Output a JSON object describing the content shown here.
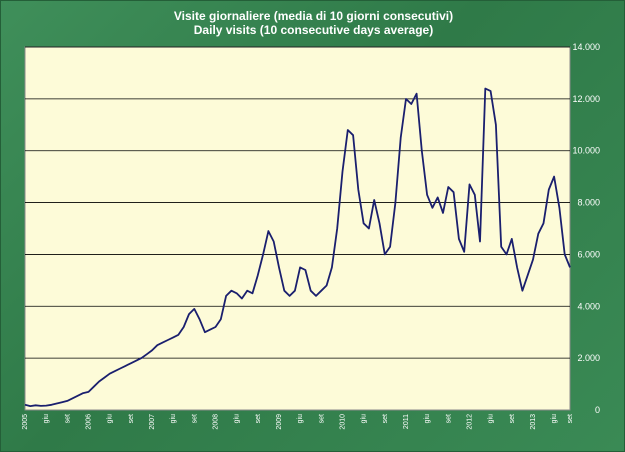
{
  "chart_data": {
    "type": "line",
    "title": "Visite giornaliere (media di 10 giorni consecutivi)",
    "subtitle": "Daily visits (10 consecutive days average)",
    "xlabel": "",
    "ylabel": "",
    "ylim": [
      0,
      14000
    ],
    "yticks": [
      {
        "value": 0,
        "label": "0"
      },
      {
        "value": 2000,
        "label": "2.000"
      },
      {
        "value": 4000,
        "label": "4.000"
      },
      {
        "value": 6000,
        "label": "6.000"
      },
      {
        "value": 8000,
        "label": "8.000"
      },
      {
        "value": 10000,
        "label": "10.000"
      },
      {
        "value": 12000,
        "label": "12.000"
      },
      {
        "value": 14000,
        "label": "14.000"
      }
    ],
    "grid": true,
    "line_color": "#1a1f6e",
    "plot_background": "#fdfbd8",
    "xlim": [
      0,
      103
    ],
    "xticks": [
      {
        "x": 0,
        "label": "2005"
      },
      {
        "x": 4,
        "label": "giu"
      },
      {
        "x": 8,
        "label": "set"
      },
      {
        "x": 12,
        "label": "2006"
      },
      {
        "x": 16,
        "label": "giu"
      },
      {
        "x": 20,
        "label": "set"
      },
      {
        "x": 24,
        "label": "2007"
      },
      {
        "x": 28,
        "label": "giu"
      },
      {
        "x": 32,
        "label": "set"
      },
      {
        "x": 36,
        "label": "2008"
      },
      {
        "x": 40,
        "label": "giu"
      },
      {
        "x": 44,
        "label": "set"
      },
      {
        "x": 48,
        "label": "2009"
      },
      {
        "x": 52,
        "label": "giu"
      },
      {
        "x": 56,
        "label": "set"
      },
      {
        "x": 60,
        "label": "2010"
      },
      {
        "x": 64,
        "label": "giu"
      },
      {
        "x": 68,
        "label": "set"
      },
      {
        "x": 72,
        "label": "2011"
      },
      {
        "x": 76,
        "label": "giu"
      },
      {
        "x": 80,
        "label": "set"
      },
      {
        "x": 84,
        "label": "2012"
      },
      {
        "x": 88,
        "label": "giu"
      },
      {
        "x": 92,
        "label": "set"
      },
      {
        "x": 96,
        "label": "2013"
      },
      {
        "x": 100,
        "label": "giu"
      },
      {
        "x": 103,
        "label": "set"
      }
    ],
    "series": [
      {
        "name": "Daily visits",
        "points": [
          [
            0,
            200
          ],
          [
            1,
            150
          ],
          [
            2,
            180
          ],
          [
            3,
            160
          ],
          [
            4,
            170
          ],
          [
            5,
            200
          ],
          [
            6,
            250
          ],
          [
            7,
            300
          ],
          [
            8,
            350
          ],
          [
            9,
            450
          ],
          [
            10,
            550
          ],
          [
            11,
            650
          ],
          [
            12,
            700
          ],
          [
            13,
            900
          ],
          [
            14,
            1100
          ],
          [
            15,
            1250
          ],
          [
            16,
            1400
          ],
          [
            17,
            1500
          ],
          [
            18,
            1600
          ],
          [
            19,
            1700
          ],
          [
            20,
            1800
          ],
          [
            21,
            1900
          ],
          [
            22,
            2000
          ],
          [
            23,
            2150
          ],
          [
            24,
            2300
          ],
          [
            25,
            2500
          ],
          [
            26,
            2600
          ],
          [
            27,
            2700
          ],
          [
            28,
            2800
          ],
          [
            29,
            2900
          ],
          [
            30,
            3200
          ],
          [
            31,
            3700
          ],
          [
            32,
            3900
          ],
          [
            33,
            3500
          ],
          [
            34,
            3000
          ],
          [
            35,
            3100
          ],
          [
            36,
            3200
          ],
          [
            37,
            3500
          ],
          [
            38,
            4400
          ],
          [
            39,
            4600
          ],
          [
            40,
            4500
          ],
          [
            41,
            4300
          ],
          [
            42,
            4600
          ],
          [
            43,
            4500
          ],
          [
            44,
            5200
          ],
          [
            45,
            6000
          ],
          [
            46,
            6900
          ],
          [
            47,
            6500
          ],
          [
            48,
            5500
          ],
          [
            49,
            4600
          ],
          [
            50,
            4400
          ],
          [
            51,
            4600
          ],
          [
            52,
            5500
          ],
          [
            53,
            5400
          ],
          [
            54,
            4600
          ],
          [
            55,
            4400
          ],
          [
            56,
            4600
          ],
          [
            57,
            4800
          ],
          [
            58,
            5500
          ],
          [
            59,
            7000
          ],
          [
            60,
            9200
          ],
          [
            61,
            10800
          ],
          [
            62,
            10600
          ],
          [
            63,
            8500
          ],
          [
            64,
            7200
          ],
          [
            65,
            7000
          ],
          [
            66,
            8100
          ],
          [
            67,
            7200
          ],
          [
            68,
            6000
          ],
          [
            69,
            6300
          ],
          [
            70,
            8000
          ],
          [
            71,
            10500
          ],
          [
            72,
            12000
          ],
          [
            73,
            11800
          ],
          [
            74,
            12200
          ],
          [
            75,
            10000
          ],
          [
            76,
            8300
          ],
          [
            77,
            7800
          ],
          [
            78,
            8200
          ],
          [
            79,
            7600
          ],
          [
            80,
            8600
          ],
          [
            81,
            8400
          ],
          [
            82,
            6600
          ],
          [
            83,
            6100
          ],
          [
            84,
            8700
          ],
          [
            85,
            8300
          ],
          [
            86,
            6500
          ],
          [
            87,
            12400
          ],
          [
            88,
            12300
          ],
          [
            89,
            11000
          ],
          [
            90,
            6300
          ],
          [
            91,
            6000
          ],
          [
            92,
            6600
          ],
          [
            93,
            5500
          ],
          [
            94,
            4600
          ],
          [
            95,
            5200
          ],
          [
            96,
            5800
          ],
          [
            97,
            6800
          ],
          [
            98,
            7200
          ],
          [
            99,
            8500
          ],
          [
            100,
            9000
          ],
          [
            101,
            7800
          ],
          [
            102,
            6000
          ],
          [
            103,
            5500
          ]
        ]
      }
    ]
  }
}
